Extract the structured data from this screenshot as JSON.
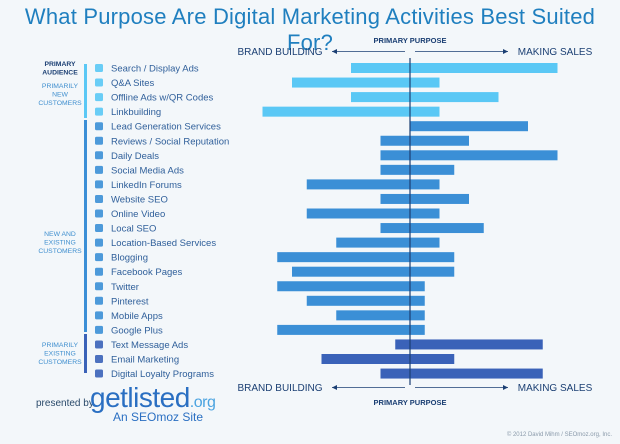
{
  "title": "What Purpose Are Digital Marketing Activities Best Suited For?",
  "footer": {
    "presented_by": "presented by",
    "logo_main": "getlisted",
    "logo_suffix": ".org",
    "sub": "An SEOmoz Site",
    "copyright": "© 2012 David Mihm / SEOmoz.org, Inc."
  },
  "colors": {
    "light": "#5ac8f5",
    "mid": "#3b8fd6",
    "dark": "#3a62b8",
    "axis": "#1b3f73",
    "label": "#2f5f9a",
    "audience": "#3f8fcf"
  },
  "audience_groups": [
    {
      "lines": [
        "PRIMARY",
        "AUDIENCE"
      ],
      "bold": true
    },
    {
      "lines": [
        "PRIMARILY",
        "NEW",
        "CUSTOMERS"
      ],
      "bold": false
    },
    {
      "lines": [
        "NEW AND",
        "EXISTING",
        "CUSTOMERS"
      ],
      "bold": false
    },
    {
      "lines": [
        "PRIMARILY",
        "EXISTING",
        "CUSTOMERS"
      ],
      "bold": false
    }
  ],
  "chart_data": {
    "type": "bar",
    "orientation": "horizontal-range",
    "title": "What Purpose Are Digital Marketing Activities Best Suited For?",
    "axis_label": "PRIMARY PURPOSE",
    "left_label": "BRAND BUILDING",
    "right_label": "MAKING SALES",
    "xlim": [
      -5,
      5
    ],
    "categories": [
      {
        "label": "Search / Display Ads",
        "icon": "search-icon",
        "range": [
          -2,
          5
        ],
        "group": "new"
      },
      {
        "label": "Q&A Sites",
        "icon": "chat-icon",
        "range": [
          -4,
          1
        ],
        "group": "new"
      },
      {
        "label": "Offline Ads w/QR Codes",
        "icon": "qr-icon",
        "range": [
          -2,
          3
        ],
        "group": "new"
      },
      {
        "label": "Linkbuilding",
        "icon": "link-icon",
        "range": [
          -5,
          1
        ],
        "group": "new"
      },
      {
        "label": "Lead Generation Services",
        "icon": "lead-icon",
        "range": [
          0,
          4
        ],
        "group": "mixed"
      },
      {
        "label": "Reviews / Social Reputation",
        "icon": "review-icon",
        "range": [
          -1,
          2
        ],
        "group": "mixed"
      },
      {
        "label": "Daily Deals",
        "icon": "deal-icon",
        "range": [
          -1,
          5
        ],
        "group": "mixed"
      },
      {
        "label": "Social Media Ads",
        "icon": "pin-icon",
        "range": [
          -1,
          1.5
        ],
        "group": "mixed"
      },
      {
        "label": "LinkedIn Forums",
        "icon": "linkedin-icon",
        "range": [
          -3.5,
          1
        ],
        "group": "mixed"
      },
      {
        "label": "Website SEO",
        "icon": "globe-icon",
        "range": [
          -1,
          2
        ],
        "group": "mixed"
      },
      {
        "label": "Online Video",
        "icon": "video-icon",
        "range": [
          -3.5,
          1
        ],
        "group": "mixed"
      },
      {
        "label": "Local SEO",
        "icon": "location-icon",
        "range": [
          -1,
          2.5
        ],
        "group": "mixed"
      },
      {
        "label": "Location-Based Services",
        "icon": "checkin-icon",
        "range": [
          -2.5,
          1
        ],
        "group": "mixed"
      },
      {
        "label": "Blogging",
        "icon": "rss-icon",
        "range": [
          -4.5,
          1.5
        ],
        "group": "mixed"
      },
      {
        "label": "Facebook Pages",
        "icon": "facebook-icon",
        "range": [
          -4,
          1.5
        ],
        "group": "mixed"
      },
      {
        "label": "Twitter",
        "icon": "twitter-icon",
        "range": [
          -4.5,
          0.5
        ],
        "group": "mixed"
      },
      {
        "label": "Pinterest",
        "icon": "pinterest-icon",
        "range": [
          -3.5,
          0.5
        ],
        "group": "mixed"
      },
      {
        "label": "Mobile Apps",
        "icon": "android-icon",
        "range": [
          -2.5,
          0.5
        ],
        "group": "mixed"
      },
      {
        "label": "Google Plus",
        "icon": "gplus-icon",
        "range": [
          -4.5,
          0.5
        ],
        "group": "mixed"
      },
      {
        "label": "Text Message Ads",
        "icon": "sms-icon",
        "range": [
          -0.5,
          4.5
        ],
        "group": "existing"
      },
      {
        "label": "Email Marketing",
        "icon": "email-icon",
        "range": [
          -3,
          1.5
        ],
        "group": "existing"
      },
      {
        "label": "Digital Loyalty Programs",
        "icon": "loyalty-icon",
        "range": [
          -1,
          4.5
        ],
        "group": "existing"
      }
    ]
  }
}
